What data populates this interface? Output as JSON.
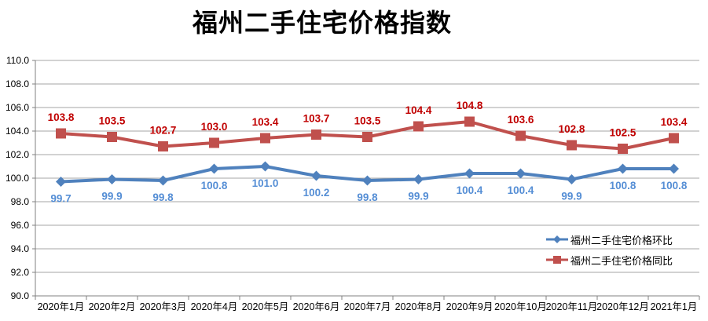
{
  "chart": {
    "title": "福州二手住宅价格指数"
  },
  "chart_data": {
    "type": "line",
    "title": "福州二手住宅价格指数",
    "categories": [
      "2020年1月",
      "2020年2月",
      "2020年3月",
      "2020年4月",
      "2020年5月",
      "2020年6月",
      "2020年7月",
      "2020年8月",
      "2020年9月",
      "2020年10月",
      "2020年11月",
      "2020年12月",
      "2021年1月"
    ],
    "series": [
      {
        "name": "福州二手住宅价格环比",
        "values": [
          99.7,
          99.9,
          99.8,
          100.8,
          101.0,
          100.2,
          99.8,
          99.9,
          100.4,
          100.4,
          99.9,
          100.8,
          100.8
        ],
        "color": "#4F81BD",
        "label_color": "#558ED5",
        "marker": "diamond",
        "label_position": "below"
      },
      {
        "name": "福州二手住宅价格同比",
        "values": [
          103.8,
          103.5,
          102.7,
          103.0,
          103.4,
          103.7,
          103.5,
          104.4,
          104.8,
          103.6,
          102.8,
          102.5,
          103.4
        ],
        "color": "#C0504D",
        "label_color": "#C00000",
        "marker": "square",
        "label_position": "above"
      }
    ],
    "ylim": [
      90.0,
      110.0
    ],
    "ytick_step": 2.0,
    "ytick_labels": [
      "90.0",
      "92.0",
      "94.0",
      "96.0",
      "98.0",
      "100.0",
      "102.0",
      "104.0",
      "106.0",
      "108.0",
      "110.0"
    ],
    "grid": true,
    "legend_position": "inside-bottom-right",
    "grid_color": "#A6A6A6",
    "axis_color": "#808080",
    "tick_label_color": "#000000",
    "background_color": "#FFFFFF"
  }
}
